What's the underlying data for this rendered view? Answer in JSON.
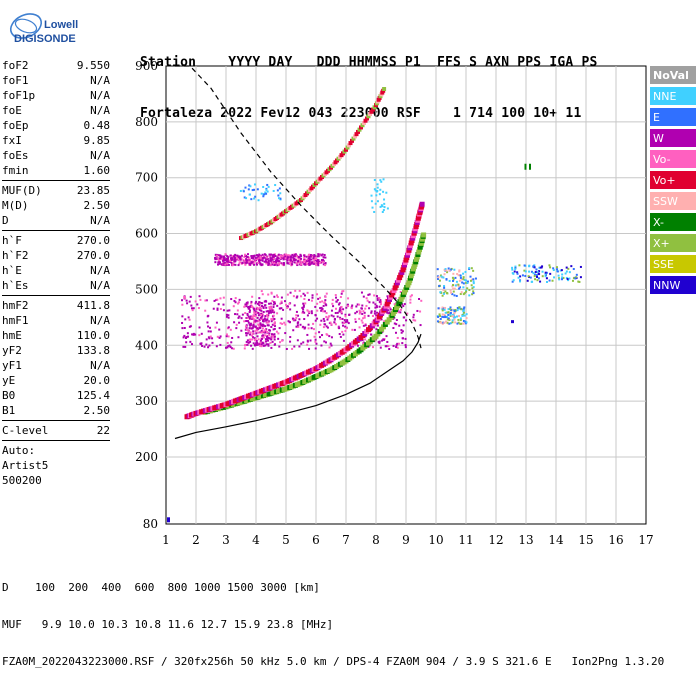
{
  "logo": {
    "line1": "Lowell",
    "line2": "DIGISONDE"
  },
  "header": {
    "line1": "Station    YYYY DAY   DDD HHMMSS P1  FFS S AXN PPS IGA PS",
    "line2": "Fortaleza 2022 Fev12 043 223000 RSF    1 714 100 10+ 11"
  },
  "params": {
    "groups": [
      [
        {
          "name": "foF2",
          "value": "9.550"
        },
        {
          "name": "foF1",
          "value": "N/A"
        },
        {
          "name": "foF1p",
          "value": "N/A"
        },
        {
          "name": "foE",
          "value": "N/A"
        },
        {
          "name": "foEp",
          "value": "0.48"
        },
        {
          "name": "fxI",
          "value": "9.85"
        },
        {
          "name": "foEs",
          "value": "N/A"
        },
        {
          "name": "fmin",
          "value": "1.60"
        }
      ],
      [
        {
          "name": "MUF(D)",
          "value": "23.85"
        },
        {
          "name": "M(D)",
          "value": "2.50"
        },
        {
          "name": "D",
          "value": "N/A"
        }
      ],
      [
        {
          "name": "h`F",
          "value": "270.0"
        },
        {
          "name": "h`F2",
          "value": "270.0"
        },
        {
          "name": "h`E",
          "value": "N/A"
        },
        {
          "name": "h`Es",
          "value": "N/A"
        }
      ],
      [
        {
          "name": "hmF2",
          "value": "411.8"
        },
        {
          "name": "hmF1",
          "value": "N/A"
        },
        {
          "name": "hmE",
          "value": "110.0"
        },
        {
          "name": "yF2",
          "value": "133.8"
        },
        {
          "name": "yF1",
          "value": "N/A"
        },
        {
          "name": "yE",
          "value": "20.0"
        },
        {
          "name": "B0",
          "value": "125.4"
        },
        {
          "name": "B1",
          "value": "2.50"
        }
      ],
      [
        {
          "name": "C-level",
          "value": "22"
        }
      ]
    ],
    "auto_lines": [
      "Auto:",
      "Artist5",
      "500200"
    ]
  },
  "footer": {
    "line1": "D    100  200  400  600  800 1000 1500 3000 [km]",
    "line2": "MUF   9.9 10.0 10.3 10.8 11.6 12.7 15.9 23.8 [MHz]",
    "line3": "FZA0M_2022043223000.RSF / 320fx256h 50 kHz 5.0 km / DPS-4 FZA0M 904 / 3.9 S 321.6 E   Ion2Png 1.3.20"
  },
  "colors": {
    "NoVal": "#a0a0a0",
    "NNE": "#40d0ff",
    "E": "#3070ff",
    "W": "#b000b0",
    "Vo-": "#ff60c0",
    "Vo+": "#e00030",
    "SSW": "#ffb0b0",
    "X-": "#008000",
    "X+": "#90c040",
    "SSE": "#c8c800",
    "NNW": "#2000d0"
  },
  "chart_data": {
    "type": "scatter",
    "xlim": [
      1,
      17
    ],
    "ylim": [
      80,
      900
    ],
    "x_ticks": [
      1,
      2,
      3,
      4,
      5,
      6,
      7,
      8,
      9,
      10,
      11,
      12,
      13,
      14,
      15,
      16,
      17
    ],
    "y_ticks": [
      80,
      200,
      300,
      400,
      500,
      600,
      700,
      800,
      900
    ],
    "grid": true,
    "legend_position": "right",
    "legend": [
      "NoVal",
      "NNE",
      "E",
      "W",
      "Vo-",
      "Vo+",
      "SSW",
      "X-",
      "X+",
      "SSE",
      "NNW"
    ],
    "o_trace": {
      "x": [
        1.7,
        2.0,
        2.5,
        3.0,
        3.5,
        4.0,
        4.5,
        5.0,
        5.5,
        6.0,
        6.5,
        7.0,
        7.5,
        8.0,
        8.3,
        8.6,
        8.9,
        9.1,
        9.3,
        9.45,
        9.55
      ],
      "y": [
        272,
        278,
        286,
        294,
        304,
        314,
        324,
        334,
        346,
        358,
        374,
        392,
        414,
        442,
        466,
        498,
        535,
        570,
        605,
        635,
        655
      ]
    },
    "x_trace": {
      "x": [
        2.3,
        3.0,
        3.5,
        4.0,
        4.5,
        5.0,
        5.5,
        6.0,
        6.5,
        7.0,
        7.5,
        8.0,
        8.5,
        8.8,
        9.1,
        9.3,
        9.5,
        9.6
      ],
      "y": [
        280,
        290,
        298,
        306,
        314,
        322,
        332,
        344,
        356,
        372,
        392,
        416,
        450,
        478,
        512,
        545,
        580,
        600
      ]
    },
    "f_layer_echoes": {
      "x": [
        3.5,
        4.0,
        4.5,
        5.0,
        5.5,
        6.0,
        6.5,
        7.0,
        7.5,
        8.0,
        8.3
      ],
      "y": [
        592,
        604,
        620,
        640,
        660,
        690,
        718,
        750,
        790,
        830,
        862
      ]
    },
    "spread_echoes": [
      {
        "x": [
          1.5,
          9.0
        ],
        "y": [
          395,
          490
        ],
        "color": "W"
      },
      {
        "x": [
          2.6,
          6.3
        ],
        "y": [
          545,
          565
        ],
        "color": "W"
      },
      {
        "x": [
          10.0,
          11.0
        ],
        "y": [
          440,
          470
        ],
        "color": "SSW"
      },
      {
        "x": [
          10.0,
          11.3
        ],
        "y": [
          490,
          540
        ],
        "color": "SSW"
      },
      {
        "x": [
          12.5,
          14.8
        ],
        "y": [
          515,
          545
        ],
        "color": "NNW"
      }
    ],
    "profile_solid": {
      "x": [
        1.3,
        2.0,
        3.0,
        4.0,
        5.0,
        6.0,
        7.0,
        7.8,
        8.4,
        8.9,
        9.2,
        9.4,
        9.5
      ],
      "y": [
        233,
        244,
        254,
        265,
        278,
        292,
        312,
        332,
        354,
        372,
        388,
        405,
        420
      ]
    },
    "profile_dashed": {
      "x": [
        1.3,
        1.8,
        2.5,
        3.5,
        4.5,
        5.5,
        6.5,
        7.5,
        8.3,
        8.8,
        9.2,
        9.4,
        9.5
      ],
      "y": [
        900,
        900,
        860,
        780,
        710,
        650,
        596,
        546,
        502,
        472,
        440,
        415,
        395
      ]
    }
  }
}
